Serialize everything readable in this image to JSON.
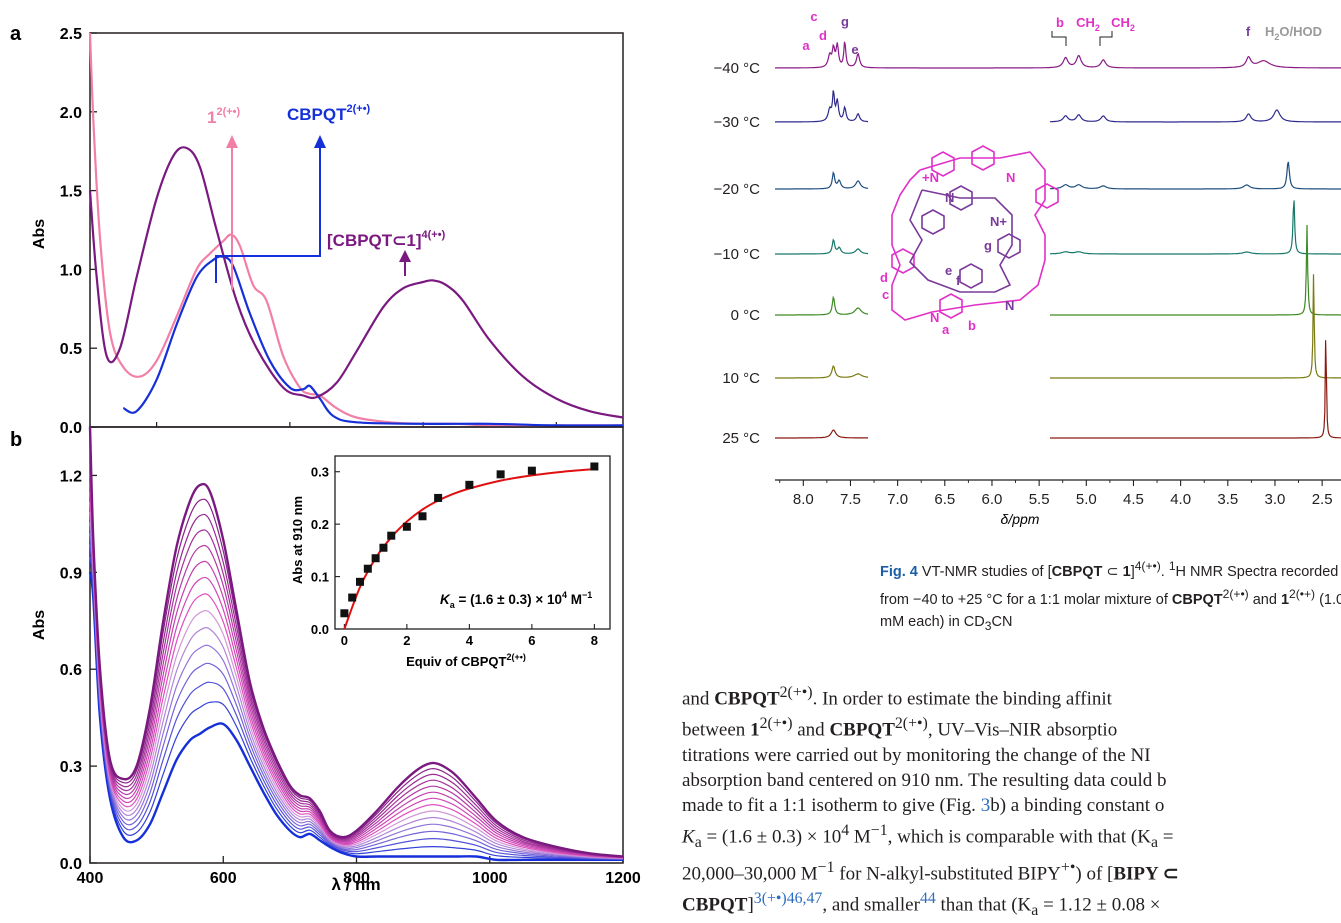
{
  "panel_a": {
    "letter": "a",
    "ylabel": "Abs",
    "yticks": [
      "0.0",
      "0.5",
      "1.0",
      "1.5",
      "2.0",
      "2.5"
    ],
    "labels": {
      "one": "1",
      "one_sup": "2(+•)",
      "cbpqt": "CBPQT",
      "cbpqt_sup": "2(+•)",
      "complex": "[CBPQT⊂1]",
      "complex_sup": "4(+•)"
    },
    "colors": {
      "one": "#f27fa7",
      "cbpqt": "#1530d8",
      "complex": "#7a1a80"
    }
  },
  "panel_b": {
    "letter": "b",
    "ylabel": "Abs",
    "xlabel": "λ / nm",
    "yticks": [
      "0.0",
      "0.3",
      "0.6",
      "0.9",
      "1.2"
    ],
    "xticks": [
      "400",
      "600",
      "800",
      "1000",
      "1200"
    ],
    "inset": {
      "ylabel": "Abs at 910 nm",
      "xlabel": "Equiv of CBPQT",
      "xlabel_sup": "2(+•)",
      "yticks": [
        "0.0",
        "0.1",
        "0.2",
        "0.3"
      ],
      "xticks": [
        "0",
        "2",
        "4",
        "6",
        "8"
      ],
      "ka_label": "K",
      "ka_sub": "a",
      "ka_text": " = (1.6 ± 0.3) × 10",
      "ka_exp": "4",
      "ka_unit": " M",
      "ka_unit_exp": "−1"
    }
  },
  "chart_data": [
    {
      "type": "line",
      "panel": "a",
      "ylabel": "Abs",
      "xlim": [
        400,
        1200
      ],
      "ylim": [
        0,
        2.5
      ],
      "series": [
        {
          "name": "1^2(+•)",
          "color": "#f27fa7",
          "x": [
            400,
            405,
            415,
            430,
            450,
            475,
            500,
            530,
            560,
            580,
            600,
            612,
            625,
            645,
            665,
            690,
            715,
            730,
            745,
            770,
            800,
            850,
            900,
            950,
            1000,
            1100,
            1200
          ],
          "y": [
            2.5,
            1.95,
            1.2,
            0.6,
            0.38,
            0.32,
            0.42,
            0.7,
            1.0,
            1.1,
            1.18,
            1.22,
            1.15,
            0.9,
            0.8,
            0.45,
            0.25,
            0.21,
            0.2,
            0.12,
            0.06,
            0.03,
            0.02,
            0.02,
            0.01,
            0.01,
            0.01
          ]
        },
        {
          "name": "CBPQT^2(+•)",
          "color": "#1530d8",
          "x": [
            450,
            470,
            500,
            530,
            560,
            585,
            600,
            615,
            640,
            670,
            700,
            720,
            730,
            745,
            765,
            800,
            900,
            1000,
            1100,
            1200
          ],
          "y": [
            0.12,
            0.1,
            0.3,
            0.65,
            0.95,
            1.06,
            1.08,
            1.02,
            0.72,
            0.42,
            0.25,
            0.24,
            0.26,
            0.18,
            0.07,
            0.03,
            0.02,
            0.02,
            0.01,
            0.01
          ]
        },
        {
          "name": "[CBPQT⊂1]^4(+•)",
          "color": "#7a1a80",
          "x": [
            400,
            410,
            425,
            445,
            470,
            500,
            525,
            545,
            565,
            590,
            620,
            650,
            690,
            720,
            740,
            770,
            800,
            840,
            870,
            900,
            915,
            935,
            960,
            1000,
            1050,
            1100,
            1150,
            1200
          ],
          "y": [
            1.5,
            0.95,
            0.45,
            0.5,
            0.95,
            1.45,
            1.72,
            1.77,
            1.65,
            1.25,
            0.8,
            0.5,
            0.25,
            0.2,
            0.19,
            0.28,
            0.48,
            0.76,
            0.88,
            0.92,
            0.93,
            0.9,
            0.8,
            0.55,
            0.32,
            0.18,
            0.1,
            0.06
          ]
        }
      ]
    },
    {
      "type": "line",
      "panel": "b",
      "xlabel": "λ / nm",
      "ylabel": "Abs",
      "xlim": [
        400,
        1200
      ],
      "ylim": [
        0,
        1.35
      ],
      "x": [
        400,
        405,
        415,
        430,
        450,
        470,
        490,
        510,
        530,
        550,
        565,
        580,
        600,
        620,
        640,
        660,
        680,
        700,
        715,
        730,
        745,
        760,
        780,
        800,
        830,
        860,
        880,
        900,
        915,
        930,
        950,
        980,
        1010,
        1050,
        1100,
        1150,
        1200
      ],
      "shape_base": [
        0.9,
        0.82,
        0.45,
        0.2,
        0.08,
        0.07,
        0.12,
        0.22,
        0.32,
        0.38,
        0.4,
        0.42,
        0.43,
        0.38,
        0.3,
        0.22,
        0.15,
        0.1,
        0.08,
        0.09,
        0.07,
        0.05,
        0.03,
        0.02,
        0.02,
        0.02,
        0.02,
        0.02,
        0.02,
        0.02,
        0.02,
        0.02,
        0.01,
        0.01,
        0.01,
        0.01,
        0.01
      ],
      "shape_top": [
        1.35,
        1.0,
        0.6,
        0.32,
        0.26,
        0.3,
        0.48,
        0.75,
        0.98,
        1.12,
        1.17,
        1.15,
        1.0,
        0.78,
        0.56,
        0.42,
        0.32,
        0.24,
        0.21,
        0.2,
        0.16,
        0.1,
        0.08,
        0.1,
        0.16,
        0.23,
        0.27,
        0.3,
        0.31,
        0.3,
        0.27,
        0.2,
        0.13,
        0.08,
        0.05,
        0.03,
        0.02
      ],
      "n_curves": 15,
      "color_start": "#1530d8",
      "color_end": "#7a1a80"
    },
    {
      "type": "scatter",
      "panel": "b-inset",
      "xlabel": "Equiv of CBPQT^2(+•)",
      "ylabel": "Abs at 910 nm",
      "xlim": [
        -0.3,
        8.5
      ],
      "ylim": [
        0,
        0.33
      ],
      "points_x": [
        0,
        0.25,
        0.5,
        0.75,
        1.0,
        1.25,
        1.5,
        2.0,
        2.5,
        3.0,
        4.0,
        5.0,
        6.0,
        8.0
      ],
      "points_y": [
        0.03,
        0.06,
        0.09,
        0.115,
        0.135,
        0.155,
        0.178,
        0.195,
        0.215,
        0.25,
        0.275,
        0.295,
        0.302,
        0.31
      ],
      "fit_x": [
        0,
        0.5,
        1,
        1.5,
        2,
        2.5,
        3,
        3.5,
        4,
        5,
        6,
        7,
        8
      ],
      "fit_y": [
        0.0,
        0.08,
        0.135,
        0.175,
        0.205,
        0.228,
        0.245,
        0.258,
        0.268,
        0.283,
        0.293,
        0.3,
        0.305
      ],
      "fit_color": "#e01010"
    },
    {
      "type": "line",
      "panel": "nmr",
      "xlabel": "δ/ppm",
      "xticks": [
        "8.0",
        "7.5",
        "7.0",
        "6.5",
        "6.0",
        "5.5",
        "5.0",
        "4.5",
        "4.0",
        "3.5",
        "3.0",
        "2.5"
      ],
      "xlim": [
        8.3,
        2.3
      ],
      "series": [
        {
          "name": "−40 °C",
          "color": "#8a1a86"
        },
        {
          "name": "−30 °C",
          "color": "#2e2a8c"
        },
        {
          "name": "−20 °C",
          "color": "#1e4f7e"
        },
        {
          "name": "−10 °C",
          "color": "#17786a"
        },
        {
          "name": "0 °C",
          "color": "#3c8a22"
        },
        {
          "name": "10 °C",
          "color": "#7a7a10"
        },
        {
          "name": "25 °C",
          "color": "#8a1a10"
        }
      ]
    }
  ],
  "nmr": {
    "temps": [
      "−40 °C",
      "−30 °C",
      "−20 °C",
      "−10 °C",
      "0 °C",
      "10 °C",
      "25 °C"
    ],
    "xlabel": "δ/ppm",
    "peak_labels": {
      "a": "a",
      "b": "b",
      "c": "c",
      "d": "d",
      "e": "e",
      "f": "f",
      "g": "g",
      "ch2": "CH",
      "ch2_sub": "2",
      "h2o": "H",
      "h2o_sub": "2",
      "h2o_rest": "O/HOD"
    },
    "struct_labels": [
      "a",
      "b",
      "c",
      "d",
      "e",
      "f",
      "g"
    ]
  },
  "caption": {
    "fig": "Fig. 4",
    "t1": " VT-NMR studies of [",
    "b1": "CBPQT",
    "t2": " ⊂ ",
    "b2": "1",
    "t3": "]",
    "sup1": "4(+•)",
    "t4": ". ",
    "sup2": "1",
    "t5": "H NMR Spectra recorded",
    "line2a": "from −40 to +25 °C for a 1:1 molar mixture of ",
    "b3": "CBPQT",
    "sup3": "2(+•)",
    "line2b": " and ",
    "b4": "1",
    "sup4": "2(•+)",
    "line2c": " (1.0",
    "line3a": "mM each) in CD",
    "sub3": "3",
    "line3b": "CN"
  },
  "body": {
    "l1a": "and ",
    "l1b": "CBPQT",
    "l1sup": "2(+•)",
    "l1c": ". In order to estimate the binding affinit",
    "l2a": "between ",
    "l2b": "1",
    "l2sup": "2(+•)",
    "l2c": " and ",
    "l2d": "CBPQT",
    "l2sup2": "2(+•)",
    "l2e": ", UV–Vis–NIR absorptio",
    "l3": "titrations were carried out by monitoring the change of the NI",
    "l4": "absorption band centered on 910 nm. The resulting data could b",
    "l5a": "made to fit a 1:1 isotherm to give (Fig. ",
    "l5ref": "3",
    "l5b": "b) a binding constant o",
    "l6": "K",
    "l6sub": "a",
    "l6b": " = (1.6 ± 0.3) × 10",
    "l6sup": "4",
    "l6c": " M",
    "l6sup2": "−1",
    "l6d": ", which is comparable with that (K",
    "l6sub2": "a",
    "l6e": " =",
    "l7a": "20,000–30,000 M",
    "l7sup": "−1",
    "l7b": " for N-alkyl-substituted BIPY",
    "l7sup2": "+•",
    "l7c": ") of [",
    "l7d": "BIPY ⊂",
    "l8a": "CBPQT",
    "l8b": "]",
    "l8sup": "3(+•)46,47",
    "l8c": ", and smaller",
    "l8sup2": "44",
    "l8d": " than that (K",
    "l8sub": "a",
    "l8e": " = 1.12 ± 0.08 ×"
  }
}
